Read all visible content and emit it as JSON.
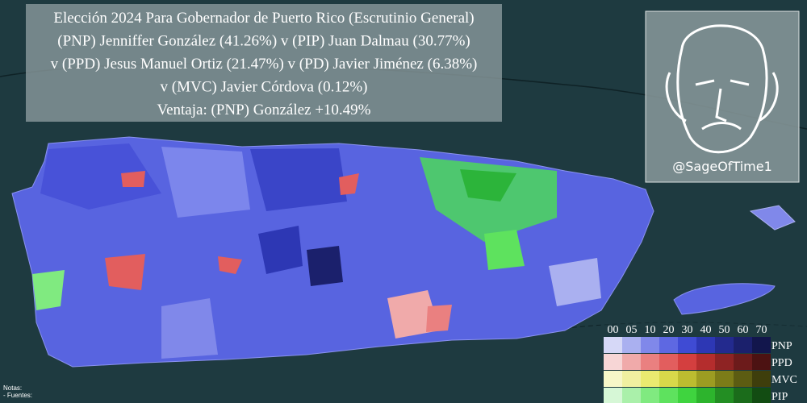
{
  "header": {
    "lines": [
      "Elección 2024 Para Gobernador de Puerto Rico (Escrutinio General)",
      "(PNP) Jenniffer González (41.26%) v (PIP) Juan Dalmau (30.77%)",
      "v (PPD) Jesus Manuel Ortiz (21.47%) v (PD) Javier Jiménez (6.38%)",
      "v (MVC) Javier Córdova (0.12%)",
      "Ventaja: (PNP) González +10.49%"
    ]
  },
  "credit": {
    "handle": "@SageOfTime1"
  },
  "legend": {
    "thresholds": [
      "00",
      "05",
      "10",
      "20",
      "30",
      "40",
      "50",
      "60",
      "70"
    ],
    "rows": [
      {
        "party": "PNP",
        "colors": [
          "#d6d8f7",
          "#aab0f0",
          "#8088ea",
          "#5e68e2",
          "#3f4bd4",
          "#2d37b4",
          "#232a8e",
          "#1b206c",
          "#12164c"
        ]
      },
      {
        "party": "PPD",
        "colors": [
          "#f7d6d6",
          "#f0aaaa",
          "#ea8080",
          "#e25e5e",
          "#d43f3f",
          "#b42d2d",
          "#8e2323",
          "#6c1b1b",
          "#4c1212"
        ]
      },
      {
        "party": "MVC",
        "colors": [
          "#f7f7c8",
          "#f0f0a0",
          "#eaea70",
          "#d8d84a",
          "#bcbc30",
          "#9c9c22",
          "#7c7c18",
          "#5c5c12",
          "#3e3e0c"
        ]
      },
      {
        "party": "PIP",
        "colors": [
          "#d6f7d6",
          "#aaf0aa",
          "#80ea80",
          "#5ee25e",
          "#3fd43f",
          "#2db42d",
          "#238e23",
          "#1b6c1b",
          "#124c12"
        ]
      }
    ]
  },
  "notes": {
    "lines": [
      "Notas:",
      "- Fuentes:"
    ]
  }
}
